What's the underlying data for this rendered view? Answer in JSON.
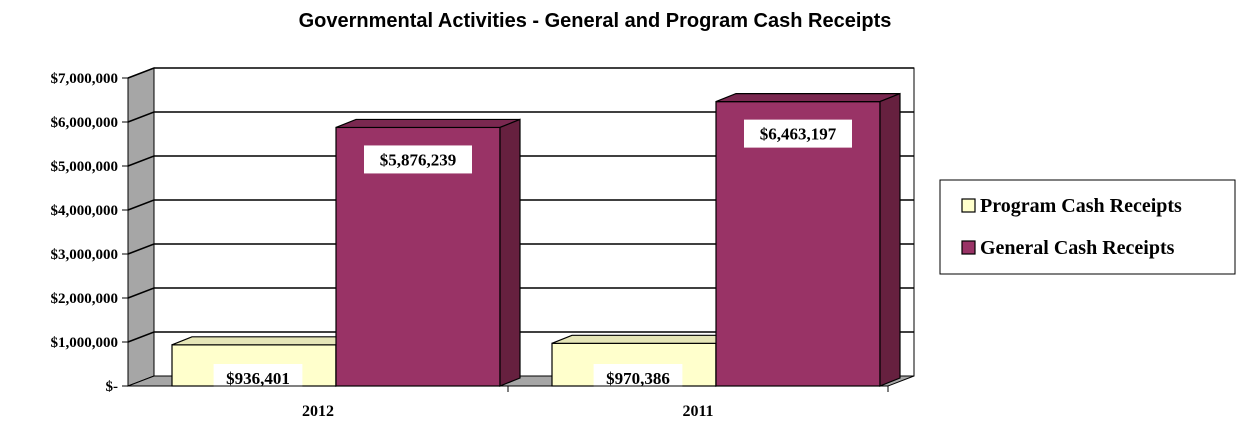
{
  "chart_data": {
    "type": "bar",
    "title": "Governmental Activities - General and Program Cash Receipts",
    "categories": [
      "2012",
      "2011"
    ],
    "series": [
      {
        "name": "Program Cash Receipts",
        "values": [
          936401,
          970386
        ],
        "labels": [
          "$936,401",
          "$970,386"
        ],
        "color": "#FFFFCC",
        "side_color": "#D6D6A8",
        "top_color": "#E6E6B8"
      },
      {
        "name": "General Cash Receipts",
        "values": [
          5876239,
          6463197
        ],
        "labels": [
          "$5,876,239",
          "$6,463,197"
        ],
        "color": "#993366",
        "side_color": "#66203F",
        "top_color": "#7A2850"
      }
    ],
    "ylim": [
      0,
      7000000
    ],
    "yticks": [
      0,
      1000000,
      2000000,
      3000000,
      4000000,
      5000000,
      6000000,
      7000000
    ],
    "ytick_labels": [
      "$-",
      "$1,000,000",
      "$2,000,000",
      "$3,000,000",
      "$4,000,000",
      "$5,000,000",
      "$6,000,000",
      "$7,000,000"
    ],
    "xlabel": "",
    "ylabel": "",
    "grid": true,
    "legend_position": "right",
    "three_d": true
  }
}
